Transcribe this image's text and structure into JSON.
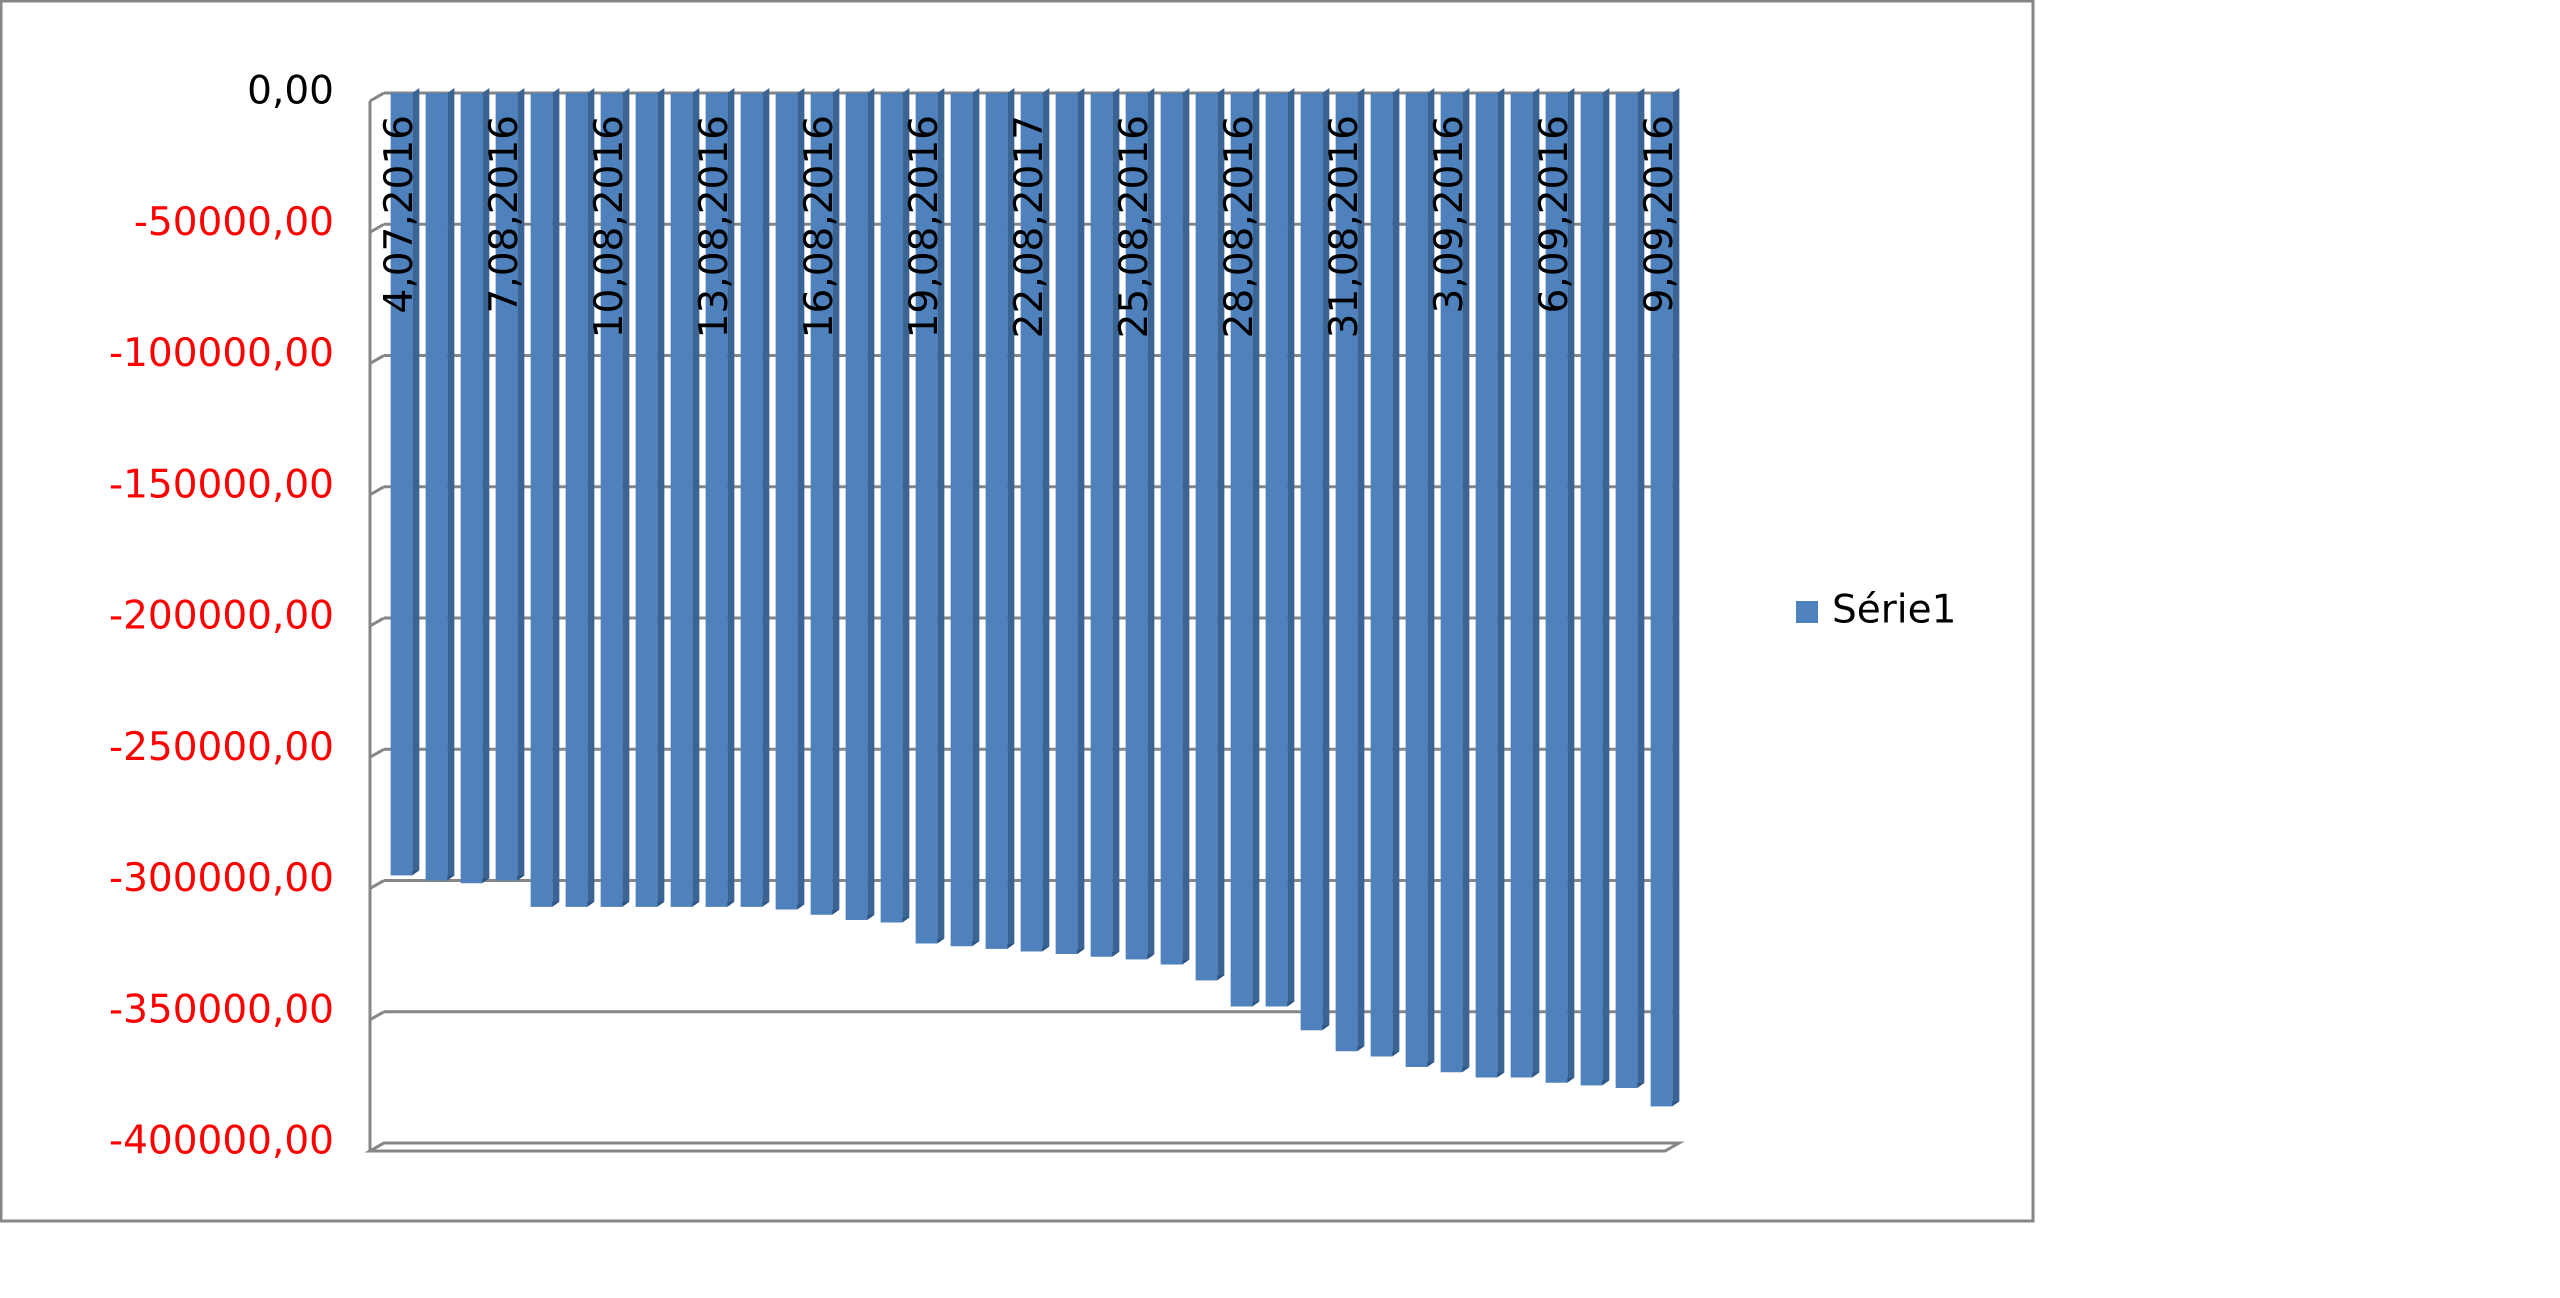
{
  "chart_data": {
    "type": "bar",
    "series": [
      {
        "name": "Série1",
        "color": "#4f81bd",
        "values": [
          -298000,
          -300000,
          -301000,
          -300000,
          -310000,
          -310000,
          -310000,
          -310000,
          -310000,
          -310000,
          -310000,
          -311000,
          -313000,
          -315000,
          -316000,
          -324000,
          -325000,
          -326000,
          -327000,
          -328000,
          -329000,
          -330000,
          -332000,
          -338000,
          -348000,
          -348000,
          -357000,
          -365000,
          -367000,
          -371000,
          -373000,
          -375000,
          -375000,
          -377000,
          -378000,
          -379000,
          -386000
        ]
      }
    ],
    "categories": [
      "4,07,2016",
      null,
      null,
      "7,08,2016",
      null,
      null,
      "10,08,2016",
      null,
      null,
      "13,08,2016",
      null,
      null,
      "16,08,2016",
      null,
      null,
      "19,08,2016",
      null,
      null,
      "22,08,2017",
      null,
      null,
      "25,08,2016",
      null,
      null,
      "28,08,2016",
      null,
      null,
      "31,08,2016",
      null,
      null,
      "3,09,2016",
      null,
      null,
      "6,09,2016",
      null,
      null,
      "9,09,2016"
    ],
    "ylim": [
      -400000,
      0
    ],
    "yticks": [
      {
        "value": 0,
        "label": "0,00"
      },
      {
        "value": -50000,
        "label": "-50000,00"
      },
      {
        "value": -100000,
        "label": "-100000,00"
      },
      {
        "value": -150000,
        "label": "-150000,00"
      },
      {
        "value": -200000,
        "label": "-200000,00"
      },
      {
        "value": -250000,
        "label": "-250000,00"
      },
      {
        "value": -300000,
        "label": "-300000,00"
      },
      {
        "value": -350000,
        "label": "-350000,00"
      },
      {
        "value": -400000,
        "label": "-400000,00"
      }
    ],
    "grid": true,
    "legend": "right",
    "negative_tick_color": "#ff0000",
    "tick_color": "#000000"
  }
}
